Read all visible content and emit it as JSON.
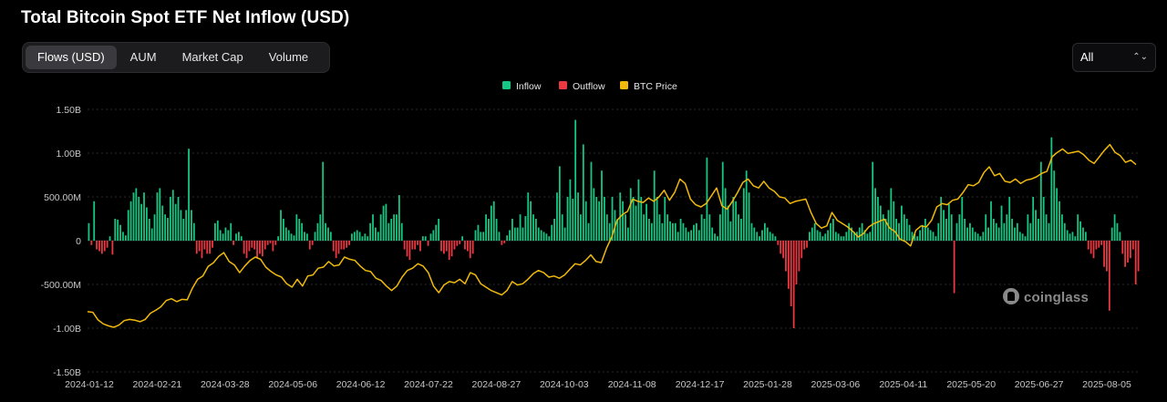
{
  "header": {
    "title": "Total Bitcoin Spot ETF Net Inflow (USD)"
  },
  "tabs": [
    {
      "label": "Flows (USD)",
      "active": true
    },
    {
      "label": "AUM",
      "active": false
    },
    {
      "label": "Market Cap",
      "active": false
    },
    {
      "label": "Volume",
      "active": false
    }
  ],
  "range_select": {
    "value": "All",
    "chevron_icon": "updown-chevron-icon"
  },
  "watermark": {
    "text": "coinglass",
    "icon": "coinglass-logo-icon"
  },
  "colors": {
    "inflow": "#16c784",
    "outflow": "#ea3943",
    "btc_price": "#f0b90b",
    "grid": "#2a2a2a"
  },
  "chart_data": {
    "type": "bar",
    "title": "Total Bitcoin Spot ETF Net Inflow (USD)",
    "legend": [
      "Inflow",
      "Outflow",
      "BTC Price"
    ],
    "legend_position": "top-center",
    "grid": true,
    "y_ticks": [
      "1.50B",
      "1.00B",
      "500.00M",
      "0",
      "-500.00M",
      "-1.00B",
      "-1.50B"
    ],
    "y_tick_values": [
      1.5,
      1.0,
      0.5,
      0,
      -0.5,
      -1.0,
      -1.5
    ],
    "y_unit": "USD (billions)",
    "ylim": [
      -1.5,
      1.5
    ],
    "x_tick_labels": [
      "2024-01-12",
      "2024-02-21",
      "2024-03-28",
      "2024-05-06",
      "2024-06-12",
      "2024-07-22",
      "2024-08-27",
      "2024-10-03",
      "2024-11-08",
      "2024-12-17",
      "2025-01-28",
      "2025-03-06",
      "2025-04-11",
      "2025-05-20",
      "2025-06-27",
      "2025-08-05"
    ],
    "x_range": [
      "2024-01-12",
      "2025-08-22"
    ],
    "series_net_flow_note": "daily net flow in billions USD, one value per trading day, in date order",
    "net_flow": [
      0.2,
      -0.05,
      0.45,
      -0.1,
      -0.12,
      -0.15,
      -0.12,
      -0.08,
      0.05,
      -0.16,
      0.25,
      0.24,
      0.18,
      0.1,
      0.06,
      0.35,
      0.45,
      0.55,
      0.6,
      0.5,
      0.42,
      0.55,
      0.38,
      0.25,
      0.14,
      0.3,
      0.55,
      0.6,
      0.4,
      0.3,
      0.26,
      0.5,
      0.58,
      0.42,
      0.5,
      0.35,
      0.25,
      0.35,
      1.05,
      0.35,
      0.2,
      -0.15,
      -0.12,
      -0.2,
      -0.1,
      -0.15,
      -0.15,
      -0.08,
      0.2,
      0.23,
      0.12,
      0.08,
      0.15,
      0.12,
      0.2,
      -0.05,
      0.08,
      0.1,
      0.05,
      -0.15,
      -0.2,
      -0.12,
      -0.08,
      -0.1,
      -0.2,
      -0.15,
      -0.18,
      -0.1,
      -0.05,
      -0.03,
      -0.12,
      -0.05,
      0.05,
      0.35,
      0.25,
      0.15,
      0.12,
      0.08,
      0.06,
      0.3,
      0.25,
      0.2,
      0.1,
      0.08,
      -0.1,
      -0.05,
      0.1,
      0.2,
      0.3,
      0.9,
      0.2,
      0.15,
      0.1,
      -0.12,
      -0.2,
      -0.15,
      -0.1,
      -0.1,
      -0.08,
      -0.05,
      0.08,
      0.1,
      0.12,
      0.1,
      0.05,
      0.08,
      0.05,
      0.2,
      0.3,
      0.15,
      0.1,
      0.3,
      0.4,
      0.42,
      0.2,
      0.25,
      0.3,
      0.3,
      0.52,
      0.2,
      -0.1,
      -0.18,
      -0.22,
      -0.1,
      -0.1,
      -0.05,
      -0.12,
      0.05,
      0.05,
      -0.06,
      0.08,
      0.12,
      0.18,
      0.25,
      -0.12,
      -0.15,
      -0.12,
      -0.22,
      -0.18,
      -0.1,
      -0.06,
      -0.04,
      0.05,
      -0.1,
      -0.12,
      -0.2,
      -0.15,
      0.12,
      0.18,
      0.1,
      0.1,
      0.3,
      0.25,
      0.4,
      0.45,
      0.25,
      0.1,
      -0.05,
      -0.03,
      0.06,
      0.12,
      0.25,
      0.15,
      0.15,
      0.3,
      0.15,
      0.28,
      0.55,
      0.45,
      0.3,
      0.25,
      0.15,
      0.12,
      0.1,
      0.08,
      0.05,
      0.18,
      0.25,
      0.55,
      0.85,
      0.3,
      0.15,
      0.5,
      0.7,
      0.48,
      1.38,
      0.55,
      0.3,
      1.1,
      0.45,
      0.2,
      0.9,
      0.6,
      0.5,
      0.45,
      0.8,
      0.5,
      0.3,
      0.2,
      0.5,
      0.35,
      0.25,
      0.55,
      0.45,
      0.3,
      0.15,
      0.6,
      0.5,
      0.4,
      0.7,
      0.5,
      0.3,
      0.42,
      0.25,
      0.2,
      0.8,
      0.5,
      0.3,
      0.2,
      0.5,
      0.3,
      0.22,
      0.2,
      0.2,
      0.1,
      0.25,
      0.2,
      0.15,
      0.1,
      0.12,
      0.18,
      0.2,
      0.12,
      0.3,
      0.25,
      0.95,
      0.3,
      0.15,
      0.08,
      0.05,
      0.3,
      0.9,
      0.6,
      0.4,
      0.22,
      0.5,
      0.45,
      0.3,
      0.25,
      0.6,
      0.8,
      0.55,
      0.2,
      0.15,
      0.1,
      0.05,
      0.12,
      0.2,
      0.15,
      0.1,
      0.08,
      0.05,
      -0.05,
      -0.15,
      -0.2,
      -0.35,
      -0.55,
      -0.75,
      -1.0,
      -0.5,
      -0.35,
      -0.2,
      -0.1,
      -0.08,
      0.1,
      0.15,
      0.2,
      0.12,
      0.1,
      0.05,
      0.08,
      0.12,
      0.2,
      0.25,
      0.1,
      0.08,
      0.05,
      0.05,
      0.1,
      0.2,
      0.15,
      0.1,
      0.1,
      0.15,
      0.2,
      0.12,
      0.08,
      0.1,
      0.9,
      0.6,
      0.5,
      0.4,
      0.3,
      0.25,
      0.35,
      0.6,
      0.45,
      0.25,
      0.2,
      0.4,
      0.3,
      0.25,
      0.18,
      0.1,
      0.08,
      0.05,
      0.12,
      0.18,
      0.25,
      0.15,
      0.12,
      0.1,
      0.05,
      0.2,
      0.5,
      0.35,
      0.25,
      0.42,
      0.3,
      -0.6,
      0.2,
      0.3,
      0.5,
      0.25,
      0.15,
      0.2,
      0.15,
      0.1,
      0.08,
      0.05,
      0.1,
      0.3,
      0.15,
      0.45,
      0.25,
      0.2,
      0.15,
      0.4,
      0.2,
      0.3,
      0.5,
      0.25,
      0.15,
      0.2,
      0.1,
      0.08,
      0.05,
      0.3,
      0.2,
      0.5,
      0.35,
      0.25,
      0.9,
      0.5,
      0.3,
      0.2,
      1.18,
      0.8,
      0.6,
      0.45,
      0.3,
      0.2,
      0.12,
      0.08,
      0.1,
      0.05,
      0.3,
      0.22,
      0.15,
      0.1,
      -0.1,
      -0.15,
      -0.2,
      -0.1,
      -0.08,
      -0.05,
      -0.3,
      -0.35,
      -0.8,
      0.15,
      0.3,
      0.2,
      0.1,
      -0.15,
      -0.3,
      -0.25,
      -0.2,
      -0.1,
      -0.5,
      -0.35
    ],
    "btc_price_note": "BTC price line samples, USD, evenly spaced across the x range",
    "btc_price": [
      46500,
      46200,
      42800,
      41000,
      40100,
      39500,
      40500,
      42500,
      43000,
      42700,
      42000,
      43000,
      45800,
      47100,
      48700,
      51500,
      52300,
      51000,
      52000,
      51800,
      57000,
      61000,
      62500,
      66800,
      68400,
      71300,
      73000,
      69000,
      67500,
      64000,
      67000,
      69500,
      71000,
      70000,
      66500,
      64500,
      63000,
      62000,
      59000,
      57500,
      61000,
      58000,
      62500,
      63000,
      66000,
      66500,
      69000,
      67000,
      67500,
      71000,
      70000,
      69500,
      67000,
      65000,
      64500,
      61500,
      60500,
      58000,
      56000,
      58000,
      62000,
      65000,
      66000,
      68000,
      67000,
      64000,
      58000,
      55000,
      58500,
      60000,
      59500,
      61000,
      59000,
      64000,
      63000,
      59000,
      57500,
      56000,
      55000,
      54000,
      56000,
      60000,
      58500,
      59000,
      61000,
      63500,
      65000,
      64000,
      62000,
      62500,
      61500,
      63000,
      65500,
      68000,
      67500,
      69500,
      72000,
      69000,
      68500,
      75000,
      80000,
      87500,
      90000,
      91500,
      97000,
      96000,
      95500,
      97500,
      96000,
      98000,
      101000,
      96500,
      100000,
      106000,
      104000,
      97000,
      94500,
      93500,
      95000,
      98500,
      102000,
      94000,
      92500,
      96000,
      100000,
      104500,
      106000,
      103000,
      102000,
      105000,
      102000,
      100500,
      98000,
      97500,
      95000,
      96000,
      96500,
      97000,
      91000,
      86000,
      84000,
      85000,
      91000,
      87500,
      86000,
      84500,
      82500,
      80000,
      81500,
      84500,
      86000,
      87000,
      88000,
      84000,
      82500,
      79000,
      78000,
      76000,
      83000,
      85000,
      84500,
      87500,
      93500,
      95000,
      94500,
      96500,
      97000,
      100000,
      103500,
      103000,
      104500,
      109000,
      111500,
      107500,
      108500,
      105000,
      104500,
      106000,
      104000,
      105500,
      106000,
      107000,
      108500,
      109500,
      116000,
      118000,
      119500,
      117500,
      118000,
      118500,
      117000,
      114500,
      113000,
      116000,
      119000,
      121500,
      118000,
      116500,
      113500,
      114500,
      112500
    ]
  }
}
